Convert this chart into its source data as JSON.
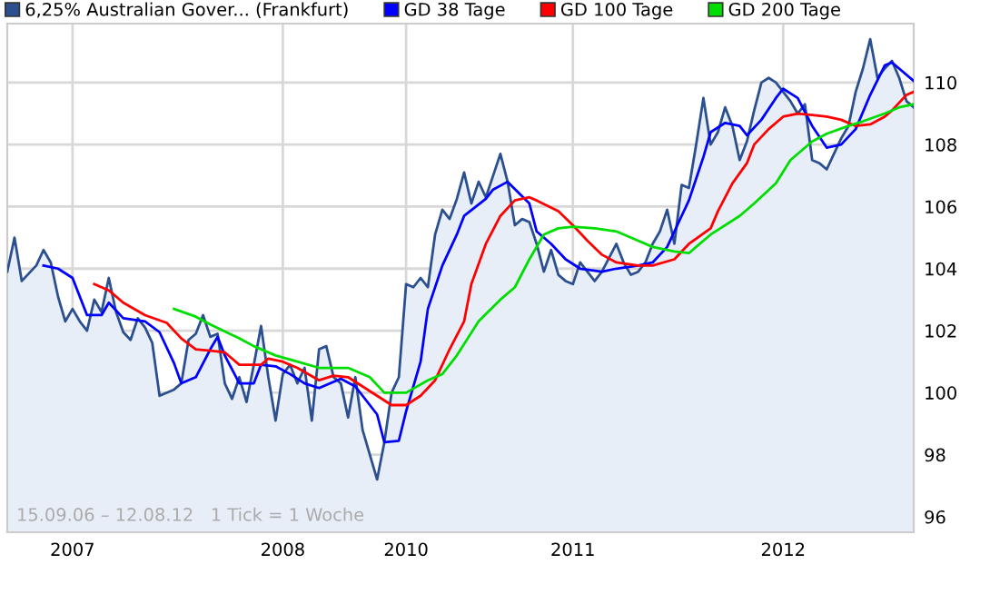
{
  "chart_data": {
    "type": "line",
    "categories": [
      null,
      null,
      null,
      null,
      null,
      null,
      null,
      null,
      null,
      "2007",
      null,
      null,
      null,
      null,
      null,
      null,
      null,
      null,
      null,
      null,
      null,
      null,
      null,
      null,
      null,
      null,
      null,
      null,
      null,
      null,
      null,
      null,
      null,
      null,
      null,
      null,
      null,
      null,
      "2008",
      null,
      null,
      null,
      null,
      null,
      null,
      null,
      null,
      null,
      null,
      null,
      null,
      null,
      null,
      null,
      null,
      "2010",
      null,
      null,
      null,
      null,
      null,
      null,
      null,
      null,
      null,
      null,
      null,
      null,
      null,
      null,
      null,
      null,
      null,
      null,
      null,
      null,
      null,
      null,
      "2011",
      null,
      null,
      null,
      null,
      null,
      null,
      null,
      null,
      null,
      null,
      null,
      null,
      null,
      null,
      null,
      null,
      null,
      null,
      null,
      null,
      null,
      null,
      null,
      null,
      null,
      null,
      null,
      null,
      "2012",
      null,
      null,
      null,
      null,
      null,
      null,
      null,
      null,
      null,
      null,
      null,
      null,
      null,
      null,
      null,
      null,
      null,
      null
    ],
    "ylim": [
      95.5,
      111.9
    ],
    "yticks": [
      96,
      98,
      100,
      102,
      104,
      106,
      108,
      110
    ],
    "grid": true,
    "legend": "top",
    "annotations": [
      "15.09.06 – 12.08.12   1 Tick = 1 Woche"
    ],
    "series": [
      {
        "name": "6,25% Australian Gover... (Frankfurt)",
        "type": "area",
        "color": "#2b4f8f",
        "values": [
          103.9,
          105.0,
          103.6,
          null,
          104.1,
          104.6,
          104.2,
          103.1,
          102.3,
          102.7,
          102.3,
          102.0,
          103.0,
          102.6,
          103.7,
          102.6,
          101.95,
          101.7,
          102.4,
          102.1,
          101.6,
          99.9,
          null,
          100.1,
          100.3,
          101.7,
          101.9,
          102.5,
          101.8,
          101.9,
          100.3,
          99.8,
          100.5,
          99.7,
          100.9,
          102.15,
          100.5,
          99.1,
          100.6,
          100.9,
          100.3,
          100.8,
          99.1,
          101.4,
          101.5,
          100.5,
          100.3,
          99.2,
          100.5,
          98.8,
          null,
          97.2,
          98.4,
          100.0,
          100.5,
          103.5,
          103.4,
          103.7,
          103.4,
          105.1,
          105.9,
          105.6,
          106.25,
          107.1,
          106.1,
          106.8,
          106.3,
          107.0,
          107.7,
          106.8,
          105.4,
          105.6,
          105.5,
          104.8,
          103.9,
          104.6,
          103.8,
          103.6,
          103.5,
          104.2,
          103.9,
          103.6,
          103.9,
          null,
          104.8,
          104.2,
          103.8,
          103.9,
          104.2,
          104.8,
          105.2,
          105.9,
          104.8,
          106.7,
          106.6,
          108.0,
          109.5,
          108.0,
          108.4,
          109.2,
          108.6,
          107.5,
          108.1,
          109.1,
          110.0,
          110.15,
          110.0,
          null,
          109.4,
          109.0,
          109.3,
          107.5,
          107.4,
          107.2,
          107.7,
          108.2,
          108.6,
          109.7,
          110.45,
          111.4,
          110.15,
          110.45,
          110.7,
          110.15,
          109.4,
          109.2
        ]
      },
      {
        "name": "GD 38 Tage",
        "color": "#0000ff",
        "values": [
          null,
          null,
          null,
          null,
          null,
          104.1,
          null,
          104.0,
          null,
          103.7,
          null,
          102.5,
          null,
          102.5,
          102.9,
          null,
          102.4,
          null,
          null,
          102.3,
          null,
          101.95,
          null,
          100.95,
          100.3,
          null,
          100.5,
          null,
          101.4,
          101.8,
          101.2,
          null,
          100.3,
          null,
          100.3,
          100.9,
          null,
          100.85,
          null,
          100.6,
          null,
          100.3,
          null,
          100.15,
          null,
          null,
          100.45,
          null,
          100.2,
          null,
          null,
          99.3,
          98.4,
          null,
          98.45,
          99.4,
          null,
          101.0,
          102.7,
          null,
          104.1,
          null,
          105.1,
          105.7,
          null,
          null,
          106.25,
          106.55,
          null,
          106.8,
          null,
          null,
          106.1,
          105.2,
          null,
          104.8,
          null,
          104.3,
          null,
          104.0,
          null,
          null,
          103.9,
          null,
          104.0,
          null,
          null,
          104.1,
          null,
          104.2,
          null,
          104.7,
          105.2,
          null,
          106.2,
          null,
          107.6,
          108.4,
          null,
          108.7,
          null,
          108.6,
          108.3,
          null,
          108.8,
          null,
          109.5,
          109.8,
          null,
          109.5,
          null,
          108.6,
          null,
          107.9,
          null,
          108.0,
          null,
          108.5,
          null,
          109.6,
          null,
          110.55,
          110.65,
          null,
          null,
          110.05
        ]
      },
      {
        "name": "GD 100 Tage",
        "color": "#ff0000",
        "values": [
          null,
          null,
          null,
          null,
          null,
          null,
          null,
          null,
          null,
          null,
          null,
          null,
          103.5,
          null,
          103.3,
          null,
          102.9,
          null,
          null,
          102.5,
          null,
          null,
          102.25,
          null,
          101.75,
          null,
          101.4,
          null,
          101.35,
          null,
          101.3,
          null,
          100.9,
          null,
          null,
          100.9,
          101.1,
          null,
          101.0,
          null,
          100.8,
          null,
          null,
          100.4,
          null,
          100.55,
          null,
          100.5,
          null,
          100.2,
          null,
          99.9,
          null,
          99.6,
          null,
          99.6,
          null,
          99.9,
          null,
          100.4,
          null,
          101.4,
          null,
          102.3,
          103.5,
          null,
          104.8,
          null,
          105.7,
          null,
          106.2,
          null,
          106.3,
          106.2,
          null,
          null,
          105.85,
          null,
          105.4,
          null,
          104.9,
          null,
          104.45,
          null,
          104.2,
          null,
          null,
          104.1,
          null,
          104.1,
          null,
          null,
          104.3,
          null,
          104.8,
          null,
          null,
          105.3,
          105.85,
          null,
          106.75,
          null,
          107.4,
          108.0,
          null,
          108.5,
          null,
          108.9,
          null,
          109.0,
          null,
          108.95,
          null,
          108.9,
          null,
          108.8,
          null,
          108.6,
          null,
          108.65,
          null,
          108.9,
          109.1,
          null,
          109.6,
          109.7
        ]
      },
      {
        "name": "GD 200 Tage",
        "color": "#00dd00",
        "values": [
          null,
          null,
          null,
          null,
          null,
          null,
          null,
          null,
          null,
          null,
          null,
          null,
          null,
          null,
          null,
          null,
          null,
          null,
          null,
          null,
          null,
          null,
          null,
          102.7,
          null,
          null,
          102.45,
          null,
          102.2,
          null,
          null,
          null,
          101.75,
          null,
          101.5,
          null,
          null,
          101.2,
          null,
          null,
          101.0,
          null,
          null,
          100.8,
          null,
          null,
          null,
          100.8,
          null,
          null,
          100.5,
          null,
          100.0,
          null,
          null,
          100.0,
          null,
          null,
          100.4,
          null,
          100.6,
          null,
          101.2,
          null,
          null,
          102.3,
          null,
          null,
          103.0,
          null,
          103.4,
          null,
          104.3,
          null,
          105.1,
          null,
          105.3,
          null,
          105.35,
          null,
          null,
          105.3,
          null,
          null,
          105.2,
          null,
          null,
          104.9,
          null,
          104.7,
          null,
          null,
          104.55,
          null,
          104.5,
          null,
          null,
          105.1,
          null,
          null,
          null,
          105.7,
          null,
          106.1,
          null,
          null,
          106.75,
          null,
          107.5,
          null,
          null,
          108.1,
          null,
          108.35,
          null,
          null,
          108.6,
          null,
          108.75,
          null,
          null,
          109.0,
          null,
          109.2,
          null,
          109.3
        ]
      }
    ]
  }
}
